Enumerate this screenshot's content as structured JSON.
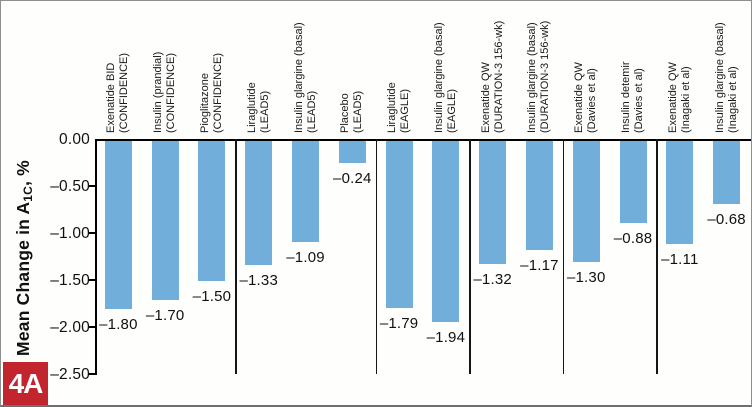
{
  "figure": {
    "panel_label": "4A",
    "colors": {
      "bar_fill": "#72aeda",
      "panel_badge_background": "#c2252e",
      "panel_badge_text": "#ffffff",
      "axis": "#000000"
    }
  },
  "chart_data": {
    "type": "bar",
    "title": "",
    "xlabel": "",
    "ylabel": "Mean Change in A1C, %",
    "ylabel_parts": {
      "prefix": "Mean Change in A",
      "subscript": "1C",
      "suffix": ", %"
    },
    "ylim": [
      -2.5,
      0
    ],
    "grid": "off",
    "legend": "none",
    "yticks": [
      0,
      -0.5,
      -1.0,
      -1.5,
      -2.0,
      -2.5
    ],
    "ytick_labels": [
      "0.00",
      "–0.50",
      "–1.00",
      "–1.50",
      "–2.00",
      "–2.50"
    ],
    "bar_color": "#72aeda",
    "categories": [
      "Exenatide BID (CONFIDENCE)",
      "Insulin (prandial) (CONFIDENCE)",
      "Pioglitazone (CONFIDENCE)",
      "Liraglutide (LEAD5)",
      "Insulin glargine (basal) (LEAD5)",
      "Placebo (LEAD5)",
      "Liraglutide (EAGLE)",
      "Insulin glargine (basal) (EAGLE)",
      "Exenatide QW (DURATION-3 156-wk)",
      "Insulin glargine (basal) (DURATION-3 156-wk)",
      "Exenatide QW (Davies et al)",
      "Insulin detemir (Davies et al)",
      "Exenatide QW (Inagaki et al)",
      "Insulin glargine (basal) (Inagaki et al)"
    ],
    "bars": [
      {
        "line1": "Exenatide BID",
        "line2": "(CONFIDENCE)",
        "value": -1.8,
        "value_label": "–1.80"
      },
      {
        "line1": "Insulin (prandial)",
        "line2": "(CONFIDENCE)",
        "value": -1.7,
        "value_label": "–1.70"
      },
      {
        "line1": "Pioglitazone",
        "line2": "(CONFIDENCE)",
        "value": -1.5,
        "value_label": "–1.50"
      },
      {
        "line1": "Liraglutide",
        "line2": "(LEAD5)",
        "value": -1.33,
        "value_label": "–1.33"
      },
      {
        "line1": "Insulin glargine (basal)",
        "line2": "(LEAD5)",
        "value": -1.09,
        "value_label": "–1.09"
      },
      {
        "line1": "Placebo",
        "line2": "(LEAD5)",
        "value": -0.24,
        "value_label": "–0.24"
      },
      {
        "line1": "Liraglutide",
        "line2": "(EAGLE)",
        "value": -1.79,
        "value_label": "–1.79"
      },
      {
        "line1": "Insulin glargine (basal)",
        "line2": "(EAGLE)",
        "value": -1.94,
        "value_label": "–1.94"
      },
      {
        "line1": "Exenatide QW",
        "line2": "(DURATION-3 156-wk)",
        "value": -1.32,
        "value_label": "–1.32"
      },
      {
        "line1": "Insulin glargine (basal)",
        "line2": "(DURATION-3 156-wk)",
        "value": -1.17,
        "value_label": "–1.17"
      },
      {
        "line1": "Exenatide QW",
        "line2": "(Davies et al)",
        "value": -1.3,
        "value_label": "–1.30"
      },
      {
        "line1": "Insulin detemir",
        "line2": "(Davies et al)",
        "value": -0.88,
        "value_label": "–0.88"
      },
      {
        "line1": "Exenatide QW",
        "line2": "(Inagaki et al)",
        "value": -1.11,
        "value_label": "–1.11"
      },
      {
        "line1": "Insulin glargine (basal)",
        "line2": "(Inagaki et al)",
        "value": -0.68,
        "value_label": "–0.68"
      }
    ],
    "group_separators_after": [
      2,
      5,
      7,
      9,
      11
    ]
  }
}
